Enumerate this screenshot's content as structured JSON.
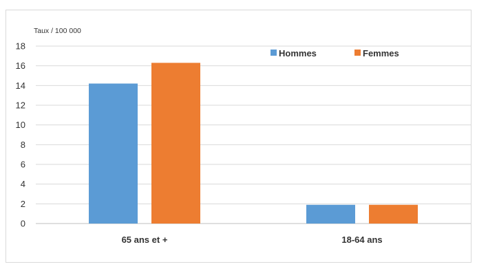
{
  "chart_data": {
    "type": "bar",
    "categories": [
      "65 ans et +",
      "18-64 ans"
    ],
    "series": [
      {
        "name": "Hommes",
        "values": [
          14.2,
          1.9
        ],
        "color": "#5b9bd5"
      },
      {
        "name": "Femmes",
        "values": [
          16.3,
          1.9
        ],
        "color": "#ed7d31"
      }
    ],
    "unit_label": "Taux / 100 000",
    "ylim": [
      0,
      18
    ],
    "yticks": [
      0,
      2,
      4,
      6,
      8,
      10,
      12,
      14,
      16,
      18
    ],
    "grid": true,
    "legend": "top-right"
  }
}
